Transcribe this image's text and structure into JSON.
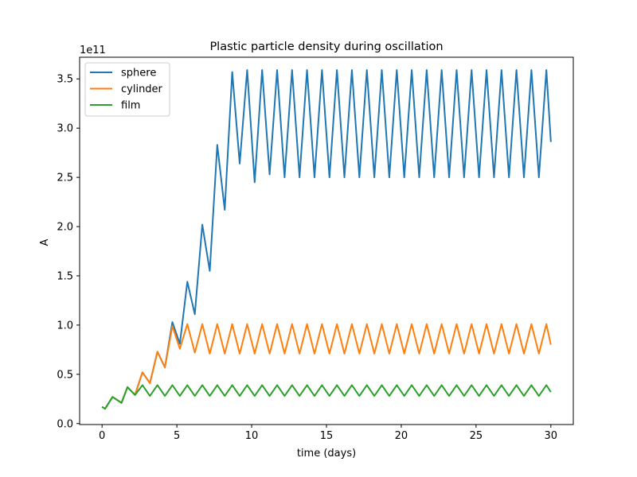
{
  "chart_data": {
    "type": "line",
    "title": "Plastic particle density during oscillation",
    "xlabel": "time (days)",
    "ylabel": "A",
    "y_offset_label": "1e11",
    "y_scale_factor": 100000000000.0,
    "xlim": [
      -1.5,
      31.5
    ],
    "ylim": [
      -1000000000.0,
      372000000000.0
    ],
    "xticks": [
      0,
      5,
      10,
      15,
      20,
      25,
      30
    ],
    "xtick_labels": [
      "0",
      "5",
      "10",
      "15",
      "20",
      "25",
      "30"
    ],
    "yticks": [
      0,
      50000000000.0,
      100000000000.0,
      150000000000.0,
      200000000000.0,
      250000000000.0,
      300000000000.0,
      350000000000.0
    ],
    "ytick_labels": [
      "0.0",
      "0.5",
      "1.0",
      "1.5",
      "2.0",
      "2.5",
      "3.0",
      "3.5"
    ],
    "grid": false,
    "legend_position": "top-left",
    "series": [
      {
        "name": "sphere",
        "color": "#1f77b4",
        "x": [
          0,
          0.2,
          0.7,
          1.3,
          1.7,
          2.2,
          2.7,
          3.2,
          3.7,
          4.2,
          4.7,
          5.2,
          5.7,
          6.2,
          6.7,
          7.2,
          7.7,
          8.2,
          8.7,
          9.2,
          9.7,
          10.2,
          10.7,
          11.2,
          11.7,
          12.2,
          12.7,
          13.2,
          13.7,
          14.2,
          14.7,
          15.2,
          15.7,
          16.2,
          16.7,
          17.2,
          17.7,
          18.2,
          18.7,
          19.2,
          19.7,
          20.2,
          20.7,
          21.2,
          21.7,
          22.2,
          22.7,
          23.2,
          23.7,
          24.2,
          24.7,
          25.2,
          25.7,
          26.2,
          26.7,
          27.2,
          27.7,
          28.2,
          28.7,
          29.2,
          29.7,
          30.0
        ],
        "y": [
          17000000000.0,
          15000000000.0,
          27000000000.0,
          21000000000.0,
          37000000000.0,
          29000000000.0,
          52000000000.0,
          41000000000.0,
          73000000000.0,
          57000000000.0,
          103000000000.0,
          81000000000.0,
          144000000000.0,
          111000000000.0,
          202000000000.0,
          155000000000.0,
          283000000000.0,
          217000000000.0,
          357000000000.0,
          264000000000.0,
          359000000000.0,
          245000000000.0,
          359000000000.0,
          253000000000.0,
          359000000000.0,
          250000000000.0,
          359000000000.0,
          250000000000.0,
          359000000000.0,
          250000000000.0,
          359000000000.0,
          250000000000.0,
          359000000000.0,
          250000000000.0,
          359000000000.0,
          250000000000.0,
          359000000000.0,
          250000000000.0,
          359000000000.0,
          250000000000.0,
          359000000000.0,
          250000000000.0,
          359000000000.0,
          250000000000.0,
          359000000000.0,
          250000000000.0,
          359000000000.0,
          250000000000.0,
          359000000000.0,
          250000000000.0,
          359000000000.0,
          250000000000.0,
          359000000000.0,
          250000000000.0,
          359000000000.0,
          250000000000.0,
          359000000000.0,
          250000000000.0,
          359000000000.0,
          250000000000.0,
          359000000000.0,
          286000000000.0
        ]
      },
      {
        "name": "cylinder",
        "color": "#ff7f0e",
        "x": [
          0,
          0.2,
          0.7,
          1.3,
          1.7,
          2.2,
          2.7,
          3.2,
          3.7,
          4.2,
          4.7,
          5.2,
          5.7,
          6.2,
          6.7,
          7.2,
          7.7,
          8.2,
          8.7,
          9.2,
          9.7,
          10.2,
          10.7,
          11.2,
          11.7,
          12.2,
          12.7,
          13.2,
          13.7,
          14.2,
          14.7,
          15.2,
          15.7,
          16.2,
          16.7,
          17.2,
          17.7,
          18.2,
          18.7,
          19.2,
          19.7,
          20.2,
          20.7,
          21.2,
          21.7,
          22.2,
          22.7,
          23.2,
          23.7,
          24.2,
          24.7,
          25.2,
          25.7,
          26.2,
          26.7,
          27.2,
          27.7,
          28.2,
          28.7,
          29.2,
          29.7,
          30.0
        ],
        "y": [
          17000000000.0,
          15000000000.0,
          27000000000.0,
          21000000000.0,
          37000000000.0,
          29000000000.0,
          52000000000.0,
          41000000000.0,
          73000000000.0,
          57000000000.0,
          99000000000.0,
          76000000000.0,
          101000000000.0,
          72000000000.0,
          101000000000.0,
          71000000000.0,
          101000000000.0,
          71000000000.0,
          101000000000.0,
          71000000000.0,
          101000000000.0,
          71000000000.0,
          101000000000.0,
          71000000000.0,
          101000000000.0,
          71000000000.0,
          101000000000.0,
          71000000000.0,
          101000000000.0,
          71000000000.0,
          101000000000.0,
          71000000000.0,
          101000000000.0,
          71000000000.0,
          101000000000.0,
          71000000000.0,
          101000000000.0,
          71000000000.0,
          101000000000.0,
          71000000000.0,
          101000000000.0,
          71000000000.0,
          101000000000.0,
          71000000000.0,
          101000000000.0,
          71000000000.0,
          101000000000.0,
          71000000000.0,
          101000000000.0,
          71000000000.0,
          101000000000.0,
          71000000000.0,
          101000000000.0,
          71000000000.0,
          101000000000.0,
          71000000000.0,
          101000000000.0,
          71000000000.0,
          101000000000.0,
          71000000000.0,
          101000000000.0,
          80000000000.0
        ]
      },
      {
        "name": "film",
        "color": "#2ca02c",
        "x": [
          0,
          0.2,
          0.7,
          1.3,
          1.7,
          2.2,
          2.7,
          3.2,
          3.7,
          4.2,
          4.7,
          5.2,
          5.7,
          6.2,
          6.7,
          7.2,
          7.7,
          8.2,
          8.7,
          9.2,
          9.7,
          10.2,
          10.7,
          11.2,
          11.7,
          12.2,
          12.7,
          13.2,
          13.7,
          14.2,
          14.7,
          15.2,
          15.7,
          16.2,
          16.7,
          17.2,
          17.7,
          18.2,
          18.7,
          19.2,
          19.7,
          20.2,
          20.7,
          21.2,
          21.7,
          22.2,
          22.7,
          23.2,
          23.7,
          24.2,
          24.7,
          25.2,
          25.7,
          26.2,
          26.7,
          27.2,
          27.7,
          28.2,
          28.7,
          29.2,
          29.7,
          30.0
        ],
        "y": [
          17000000000.0,
          15000000000.0,
          27000000000.0,
          21000000000.0,
          37000000000.0,
          29000000000.0,
          39000000000.0,
          28000000000.0,
          39000000000.0,
          28000000000.0,
          39000000000.0,
          28000000000.0,
          39000000000.0,
          28000000000.0,
          39000000000.0,
          28000000000.0,
          39000000000.0,
          28000000000.0,
          39000000000.0,
          28000000000.0,
          39000000000.0,
          28000000000.0,
          39000000000.0,
          28000000000.0,
          39000000000.0,
          28000000000.0,
          39000000000.0,
          28000000000.0,
          39000000000.0,
          28000000000.0,
          39000000000.0,
          28000000000.0,
          39000000000.0,
          28000000000.0,
          39000000000.0,
          28000000000.0,
          39000000000.0,
          28000000000.0,
          39000000000.0,
          28000000000.0,
          39000000000.0,
          28000000000.0,
          39000000000.0,
          28000000000.0,
          39000000000.0,
          28000000000.0,
          39000000000.0,
          28000000000.0,
          39000000000.0,
          28000000000.0,
          39000000000.0,
          28000000000.0,
          39000000000.0,
          28000000000.0,
          39000000000.0,
          28000000000.0,
          39000000000.0,
          28000000000.0,
          39000000000.0,
          28000000000.0,
          39000000000.0,
          32000000000.0
        ]
      }
    ]
  }
}
